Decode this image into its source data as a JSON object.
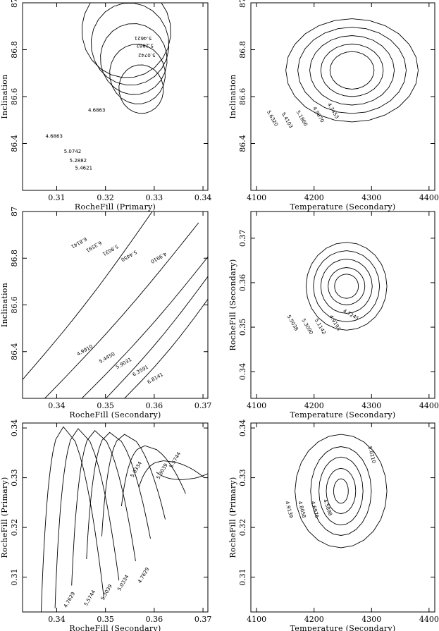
{
  "chart_data": [
    {
      "type": "contour",
      "xlabel": "RocheFill (Primary)",
      "ylabel": "Inclination",
      "xlim": [
        0.303,
        0.341
      ],
      "ylim": [
        86.2,
        87.0
      ],
      "xticks": [
        "0.31",
        "0.32",
        "0.33",
        "0.34"
      ],
      "yticks": [
        "86.4",
        "86.6",
        "86.8",
        "87"
      ],
      "contour_labels": [
        "4.6863",
        "4.6863",
        "5.0742",
        "5.2882",
        "5.4621",
        "5.0742",
        "5.2882",
        "5.4621"
      ]
    },
    {
      "type": "contour",
      "xlabel": "Temperature (Secondary)",
      "ylabel": "Inclination",
      "xlim": [
        4090,
        4410
      ],
      "ylim": [
        86.2,
        87.0
      ],
      "xticks": [
        "4100",
        "4200",
        "4300",
        "4400"
      ],
      "yticks": [
        "86.4",
        "86.6",
        "86.8",
        "87"
      ],
      "contour_labels": [
        "4.7453",
        "4.9670",
        "5.1866",
        "5.4103",
        "5.6320"
      ]
    },
    {
      "type": "contour",
      "xlabel": "RocheFill (Secondary)",
      "ylabel": "Inclination",
      "xlim": [
        0.333,
        0.371
      ],
      "ylim": [
        86.2,
        87.0
      ],
      "xticks": [
        "0.34",
        "0.35",
        "0.36",
        "0.37"
      ],
      "yticks": [
        "86.4",
        "86.6",
        "86.8",
        "87"
      ],
      "contour_labels": [
        "4.9910",
        "5.4450",
        "5.9031",
        "6.3591",
        "6.8141",
        "4.9910",
        "5.4450",
        "5.9031",
        "6.3591",
        "6.8141"
      ]
    },
    {
      "type": "contour",
      "xlabel": "Temperature (Secondary)",
      "ylabel": "RocheFill (Secondary)",
      "xlim": [
        4090,
        4410
      ],
      "ylim": [
        0.334,
        0.376
      ],
      "xticks": [
        "4100",
        "4200",
        "4300",
        "4400"
      ],
      "yticks": [
        "0.34",
        "0.35",
        "0.36",
        "0.37"
      ],
      "contour_labels": [
        "4.7245",
        "4.9193",
        "5.1142",
        "5.3090",
        "5.5038"
      ]
    },
    {
      "type": "contour",
      "xlabel": "RocheFill (Secondary)",
      "ylabel": "RocheFill (Primary)",
      "xlim": [
        0.333,
        0.371
      ],
      "ylim": [
        0.303,
        0.341
      ],
      "xticks": [
        "0.34",
        "0.35",
        "0.36",
        "0.37"
      ],
      "yticks": [
        "0.31",
        "0.32",
        "0.33",
        "0.34"
      ],
      "contour_labels": [
        "4.7629",
        "5.0334",
        "5.3039",
        "5.5744",
        "4.7629",
        "5.0334",
        "5.3039",
        "5.5744",
        "5.8449"
      ]
    },
    {
      "type": "contour",
      "xlabel": "Temperature (Secondary)",
      "ylabel": "RocheFill (Primary)",
      "xlim": [
        4090,
        4410
      ],
      "ylim": [
        0.303,
        0.341
      ],
      "xticks": [
        "4100",
        "4200",
        "4300",
        "4400"
      ],
      "yticks": [
        "0.31",
        "0.32",
        "0.33",
        "0.34"
      ],
      "contour_labels": [
        "4.5898",
        "4.6976",
        "4.8058",
        "4.9139",
        "5.0210"
      ]
    }
  ]
}
